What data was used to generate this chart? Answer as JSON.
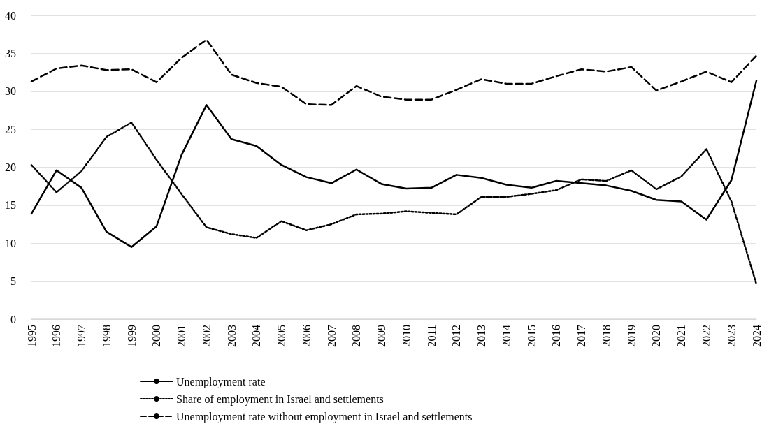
{
  "chart_data": {
    "type": "line",
    "categories": [
      "1995",
      "1996",
      "1997",
      "1998",
      "1999",
      "2000",
      "2001",
      "2002",
      "2003",
      "2004",
      "2005",
      "2006",
      "2007",
      "2008",
      "2009",
      "2010",
      "2011",
      "2012",
      "2013",
      "2014",
      "2015",
      "2016",
      "2017",
      "2018",
      "2019",
      "2020",
      "2021",
      "2022",
      "2023",
      "2024"
    ],
    "series": [
      {
        "name": "Unemployment rate",
        "color": "#000000",
        "line_style": "solid",
        "values": [
          13.9,
          19.6,
          17.3,
          11.5,
          9.5,
          12.2,
          21.6,
          28.2,
          23.7,
          22.8,
          20.3,
          18.7,
          17.9,
          19.7,
          17.8,
          17.2,
          17.3,
          19.0,
          18.6,
          17.7,
          17.3,
          18.2,
          17.9,
          17.6,
          16.9,
          15.7,
          15.5,
          13.1,
          18.3,
          31.4
        ]
      },
      {
        "name": "Share of employment in Israel and settlements",
        "color": "#000000",
        "line_style": "dotted",
        "values": [
          20.3,
          16.7,
          19.5,
          24.0,
          25.9,
          21.0,
          16.5,
          12.1,
          11.2,
          10.7,
          12.9,
          11.7,
          12.5,
          13.8,
          13.9,
          14.2,
          14.0,
          13.8,
          16.1,
          16.1,
          16.5,
          17.0,
          18.4,
          18.2,
          19.6,
          17.1,
          18.8,
          22.4,
          15.5,
          4.6
        ]
      },
      {
        "name": "Unemployment rate without employment in Israel and settlements",
        "color": "#000000",
        "line_style": "dashed",
        "values": [
          31.3,
          33.0,
          33.4,
          32.8,
          32.9,
          31.2,
          34.4,
          36.8,
          32.2,
          31.1,
          30.6,
          28.3,
          28.2,
          30.7,
          29.3,
          28.9,
          28.9,
          30.2,
          31.6,
          31.0,
          31.0,
          32.0,
          32.9,
          32.6,
          33.2,
          30.1,
          31.3,
          32.6,
          31.2,
          34.7
        ]
      }
    ],
    "ylim": [
      0,
      40
    ],
    "yticks": [
      0,
      5,
      10,
      15,
      20,
      25,
      30,
      35,
      40
    ],
    "grid": "y",
    "legend": "bottom",
    "marker": "none"
  }
}
